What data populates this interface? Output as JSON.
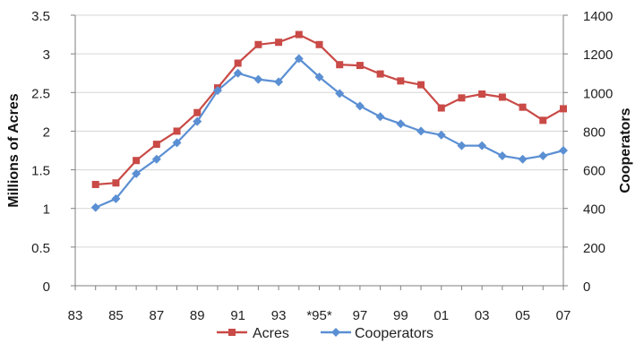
{
  "chart_data": {
    "type": "line",
    "x_tick_labels": [
      "83",
      "85",
      "87",
      "89",
      "91",
      "93",
      "*95*",
      "97",
      "99",
      "01",
      "03",
      "05",
      "07"
    ],
    "x_years": [
      1984,
      1985,
      1986,
      1987,
      1988,
      1989,
      1990,
      1991,
      1992,
      1993,
      1994,
      1995,
      1996,
      1997,
      1998,
      1999,
      2000,
      2001,
      2002,
      2003,
      2004,
      2005,
      2006,
      2007
    ],
    "xlim": [
      1983,
      2007
    ],
    "left_axis": {
      "label": "Millions of Acres",
      "ylim": [
        0,
        3.5
      ],
      "ticks": [
        "0",
        "0.5",
        "1",
        "1.5",
        "2",
        "2.5",
        "3",
        "3.5"
      ]
    },
    "right_axis": {
      "label": "Cooperators",
      "ylim": [
        0,
        1400
      ],
      "ticks": [
        "0",
        "200",
        "400",
        "600",
        "800",
        "1000",
        "1200",
        "1400"
      ]
    },
    "series": [
      {
        "name": "Acres",
        "axis": "left",
        "color": "#c94a46",
        "marker": "square",
        "values": [
          1.31,
          1.33,
          1.62,
          1.83,
          2.0,
          2.24,
          2.56,
          2.88,
          3.12,
          3.15,
          3.25,
          3.12,
          2.86,
          2.85,
          2.74,
          2.65,
          2.6,
          2.3,
          2.43,
          2.48,
          2.44,
          2.31,
          2.14,
          2.29
        ]
      },
      {
        "name": "Cooperators",
        "axis": "right",
        "color": "#5b8fd3",
        "marker": "diamond",
        "values": [
          405,
          450,
          580,
          655,
          740,
          850,
          1010,
          1100,
          1068,
          1055,
          1175,
          1080,
          995,
          930,
          875,
          838,
          800,
          780,
          725,
          725,
          672,
          655,
          672,
          700
        ]
      }
    ],
    "grid": "horizontal",
    "legend_position": "bottom"
  }
}
